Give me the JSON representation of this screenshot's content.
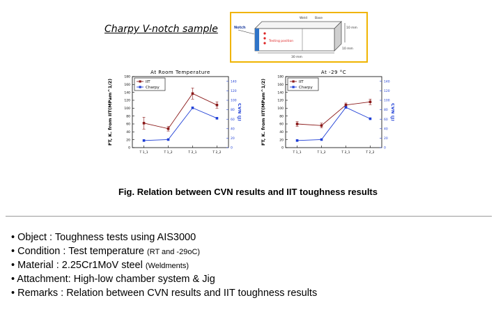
{
  "sample": {
    "title": "Charpy V-notch sample",
    "labels": {
      "notch": "Notch",
      "weld": "Weld",
      "base": "Base",
      "testing_position": "Testing position",
      "dim_height": "10 mm",
      "dim_width": "10 mm",
      "dim_length": "30 mm"
    }
  },
  "chart_data": [
    {
      "type": "line",
      "title": "At Room Temperature",
      "ylabel": "FT, K. from IIT(MPam^1/2)",
      "y2label": "CVN (J)",
      "categories": [
        "T 1_1",
        "T 1_2",
        "T 2_1",
        "T 2_2"
      ],
      "ylim": [
        0,
        180
      ],
      "yticks": [
        0,
        20,
        40,
        60,
        80,
        100,
        120,
        140,
        160,
        180
      ],
      "y2lim": [
        0,
        150
      ],
      "y2ticks": [
        0,
        20,
        40,
        60,
        80,
        100,
        120,
        140
      ],
      "legend": "top-left",
      "grid": false,
      "series": [
        {
          "name": "IIT",
          "axis": "left",
          "color": "#8b1a1a",
          "marker": "square",
          "values": [
            62,
            48,
            137,
            108
          ],
          "errors": [
            15,
            6,
            14,
            8
          ]
        },
        {
          "name": "Charpy",
          "axis": "right",
          "color": "#1f3fd6",
          "marker": "square",
          "values": [
            15,
            17,
            84,
            62
          ]
        }
      ]
    },
    {
      "type": "line",
      "title": "At -29 °C",
      "ylabel": "FT, K. from IIT(MPam^1/2)",
      "y2label": "CVN (J)",
      "categories": [
        "T 1_1",
        "T 1_2",
        "T 2_1",
        "T 2_2"
      ],
      "ylim": [
        0,
        180
      ],
      "yticks": [
        0,
        20,
        40,
        60,
        80,
        100,
        120,
        140,
        160,
        180
      ],
      "y2lim": [
        0,
        150
      ],
      "y2ticks": [
        0,
        20,
        40,
        60,
        80,
        100,
        120,
        140
      ],
      "legend": "top-left",
      "grid": false,
      "series": [
        {
          "name": "IIT",
          "axis": "left",
          "color": "#8b1a1a",
          "marker": "square",
          "values": [
            60,
            56,
            108,
            116
          ],
          "errors": [
            6,
            6,
            5,
            7
          ]
        },
        {
          "name": "Charpy",
          "axis": "right",
          "color": "#1f3fd6",
          "marker": "square",
          "values": [
            15,
            17,
            85,
            61
          ]
        }
      ]
    }
  ],
  "caption": "Fig. Relation between CVN results and IIT toughness results",
  "bullets": [
    {
      "main": "• Object : Toughness tests using AIS3000",
      "small": ""
    },
    {
      "main": "• Condition : Test temperature ",
      "small": "(RT and -29oC)"
    },
    {
      "main": "• Material : 2.25Cr1MoV steel ",
      "small": "(Weldments)"
    },
    {
      "main": "• Attachment: High-low chamber system & Jig",
      "small": ""
    },
    {
      "main": "• Remarks : Relation between CVN results and IIT toughness results",
      "small": ""
    }
  ]
}
